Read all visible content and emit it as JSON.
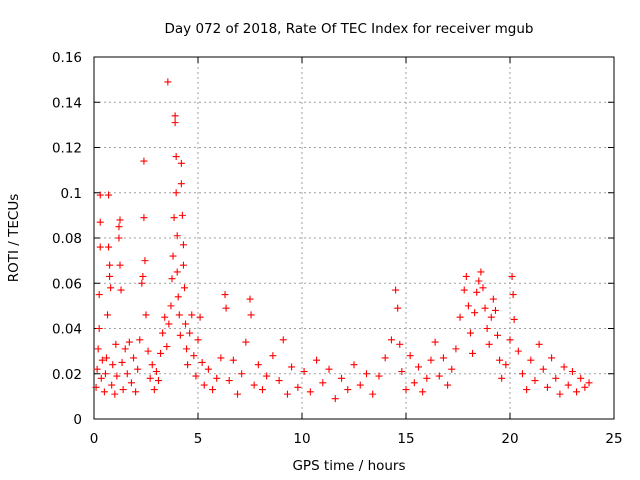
{
  "chart_data": {
    "type": "scatter",
    "title": "Day 072 of 2018, Rate Of TEC Index for receiver mgub",
    "xlabel": "GPS time / hours",
    "ylabel": "ROTI / TECUs",
    "xlim": [
      0,
      25
    ],
    "ylim": [
      0,
      0.16
    ],
    "xticks": [
      0,
      5,
      10,
      15,
      20,
      25
    ],
    "xtick_labels": [
      "0",
      "5",
      "10",
      "15",
      "20",
      "25"
    ],
    "yticks": [
      0,
      0.02,
      0.04,
      0.06,
      0.08,
      0.1,
      0.12,
      0.14,
      0.16
    ],
    "ytick_labels": [
      "0",
      "0.02",
      "0.04",
      "0.06",
      "0.08",
      "0.1",
      "0.12",
      "0.14",
      "0.16"
    ],
    "grid": true,
    "marker": "+",
    "color": "#ff0000",
    "series": [
      {
        "name": "ROTI",
        "points": [
          [
            0.1,
            0.014
          ],
          [
            0.15,
            0.022
          ],
          [
            0.2,
            0.031
          ],
          [
            0.25,
            0.04
          ],
          [
            0.25,
            0.055
          ],
          [
            0.3,
            0.076
          ],
          [
            0.3,
            0.087
          ],
          [
            0.3,
            0.099
          ],
          [
            0.35,
            0.018
          ],
          [
            0.4,
            0.026
          ],
          [
            0.5,
            0.012
          ],
          [
            0.55,
            0.02
          ],
          [
            0.6,
            0.027
          ],
          [
            0.65,
            0.046
          ],
          [
            0.7,
            0.076
          ],
          [
            0.7,
            0.099
          ],
          [
            0.75,
            0.068
          ],
          [
            0.75,
            0.063
          ],
          [
            0.8,
            0.058
          ],
          [
            0.85,
            0.015
          ],
          [
            0.9,
            0.024
          ],
          [
            1.0,
            0.011
          ],
          [
            1.05,
            0.033
          ],
          [
            1.1,
            0.019
          ],
          [
            1.2,
            0.08
          ],
          [
            1.2,
            0.085
          ],
          [
            1.25,
            0.088
          ],
          [
            1.25,
            0.068
          ],
          [
            1.3,
            0.057
          ],
          [
            1.35,
            0.025
          ],
          [
            1.4,
            0.013
          ],
          [
            1.5,
            0.031
          ],
          [
            1.6,
            0.02
          ],
          [
            1.7,
            0.034
          ],
          [
            1.8,
            0.016
          ],
          [
            1.9,
            0.027
          ],
          [
            2.0,
            0.012
          ],
          [
            2.1,
            0.022
          ],
          [
            2.2,
            0.035
          ],
          [
            2.3,
            0.06
          ],
          [
            2.35,
            0.063
          ],
          [
            2.4,
            0.114
          ],
          [
            2.4,
            0.089
          ],
          [
            2.45,
            0.07
          ],
          [
            2.5,
            0.046
          ],
          [
            2.6,
            0.03
          ],
          [
            2.7,
            0.018
          ],
          [
            2.8,
            0.024
          ],
          [
            2.9,
            0.013
          ],
          [
            3.0,
            0.021
          ],
          [
            3.1,
            0.017
          ],
          [
            3.2,
            0.029
          ],
          [
            3.3,
            0.038
          ],
          [
            3.4,
            0.045
          ],
          [
            3.5,
            0.032
          ],
          [
            3.55,
            0.149
          ],
          [
            3.6,
            0.042
          ],
          [
            3.7,
            0.05
          ],
          [
            3.75,
            0.062
          ],
          [
            3.8,
            0.072
          ],
          [
            3.85,
            0.089
          ],
          [
            3.9,
            0.131
          ],
          [
            3.9,
            0.134
          ],
          [
            3.95,
            0.116
          ],
          [
            3.95,
            0.1
          ],
          [
            4.0,
            0.081
          ],
          [
            4.0,
            0.065
          ],
          [
            4.05,
            0.054
          ],
          [
            4.1,
            0.046
          ],
          [
            4.15,
            0.037
          ],
          [
            4.2,
            0.113
          ],
          [
            4.2,
            0.104
          ],
          [
            4.25,
            0.09
          ],
          [
            4.3,
            0.077
          ],
          [
            4.3,
            0.068
          ],
          [
            4.35,
            0.058
          ],
          [
            4.4,
            0.042
          ],
          [
            4.45,
            0.031
          ],
          [
            4.5,
            0.024
          ],
          [
            4.6,
            0.038
          ],
          [
            4.7,
            0.046
          ],
          [
            4.8,
            0.028
          ],
          [
            4.9,
            0.019
          ],
          [
            5.0,
            0.035
          ],
          [
            5.1,
            0.045
          ],
          [
            5.2,
            0.025
          ],
          [
            5.3,
            0.015
          ],
          [
            5.5,
            0.022
          ],
          [
            5.7,
            0.013
          ],
          [
            5.9,
            0.018
          ],
          [
            6.1,
            0.027
          ],
          [
            6.3,
            0.055
          ],
          [
            6.35,
            0.049
          ],
          [
            6.5,
            0.017
          ],
          [
            6.7,
            0.026
          ],
          [
            6.9,
            0.011
          ],
          [
            7.1,
            0.02
          ],
          [
            7.3,
            0.034
          ],
          [
            7.5,
            0.053
          ],
          [
            7.55,
            0.046
          ],
          [
            7.7,
            0.015
          ],
          [
            7.9,
            0.024
          ],
          [
            8.1,
            0.013
          ],
          [
            8.3,
            0.019
          ],
          [
            8.6,
            0.028
          ],
          [
            8.9,
            0.017
          ],
          [
            9.1,
            0.035
          ],
          [
            9.3,
            0.011
          ],
          [
            9.5,
            0.023
          ],
          [
            9.8,
            0.014
          ],
          [
            10.1,
            0.021
          ],
          [
            10.4,
            0.012
          ],
          [
            10.7,
            0.026
          ],
          [
            11.0,
            0.016
          ],
          [
            11.3,
            0.022
          ],
          [
            11.6,
            0.009
          ],
          [
            11.9,
            0.018
          ],
          [
            12.2,
            0.013
          ],
          [
            12.5,
            0.024
          ],
          [
            12.8,
            0.015
          ],
          [
            13.1,
            0.02
          ],
          [
            13.4,
            0.011
          ],
          [
            13.7,
            0.019
          ],
          [
            14.0,
            0.027
          ],
          [
            14.3,
            0.035
          ],
          [
            14.5,
            0.057
          ],
          [
            14.6,
            0.049
          ],
          [
            14.7,
            0.033
          ],
          [
            14.8,
            0.021
          ],
          [
            15.0,
            0.013
          ],
          [
            15.2,
            0.028
          ],
          [
            15.4,
            0.016
          ],
          [
            15.6,
            0.023
          ],
          [
            15.8,
            0.012
          ],
          [
            16.0,
            0.018
          ],
          [
            16.2,
            0.026
          ],
          [
            16.4,
            0.034
          ],
          [
            16.6,
            0.019
          ],
          [
            16.8,
            0.027
          ],
          [
            17.0,
            0.015
          ],
          [
            17.2,
            0.022
          ],
          [
            17.4,
            0.031
          ],
          [
            17.6,
            0.045
          ],
          [
            17.8,
            0.057
          ],
          [
            17.9,
            0.063
          ],
          [
            18.0,
            0.05
          ],
          [
            18.1,
            0.038
          ],
          [
            18.2,
            0.029
          ],
          [
            18.3,
            0.047
          ],
          [
            18.4,
            0.056
          ],
          [
            18.5,
            0.061
          ],
          [
            18.6,
            0.065
          ],
          [
            18.7,
            0.058
          ],
          [
            18.8,
            0.049
          ],
          [
            18.9,
            0.04
          ],
          [
            19.0,
            0.033
          ],
          [
            19.1,
            0.045
          ],
          [
            19.2,
            0.053
          ],
          [
            19.3,
            0.048
          ],
          [
            19.4,
            0.037
          ],
          [
            19.5,
            0.026
          ],
          [
            19.6,
            0.018
          ],
          [
            19.8,
            0.024
          ],
          [
            20.0,
            0.035
          ],
          [
            20.1,
            0.063
          ],
          [
            20.15,
            0.055
          ],
          [
            20.2,
            0.044
          ],
          [
            20.4,
            0.03
          ],
          [
            20.6,
            0.02
          ],
          [
            20.8,
            0.013
          ],
          [
            21.0,
            0.026
          ],
          [
            21.2,
            0.017
          ],
          [
            21.4,
            0.033
          ],
          [
            21.6,
            0.022
          ],
          [
            21.8,
            0.014
          ],
          [
            22.0,
            0.027
          ],
          [
            22.2,
            0.018
          ],
          [
            22.4,
            0.011
          ],
          [
            22.6,
            0.023
          ],
          [
            22.8,
            0.015
          ],
          [
            23.0,
            0.021
          ],
          [
            23.2,
            0.012
          ],
          [
            23.4,
            0.018
          ],
          [
            23.6,
            0.014
          ],
          [
            23.8,
            0.016
          ]
        ]
      }
    ]
  }
}
